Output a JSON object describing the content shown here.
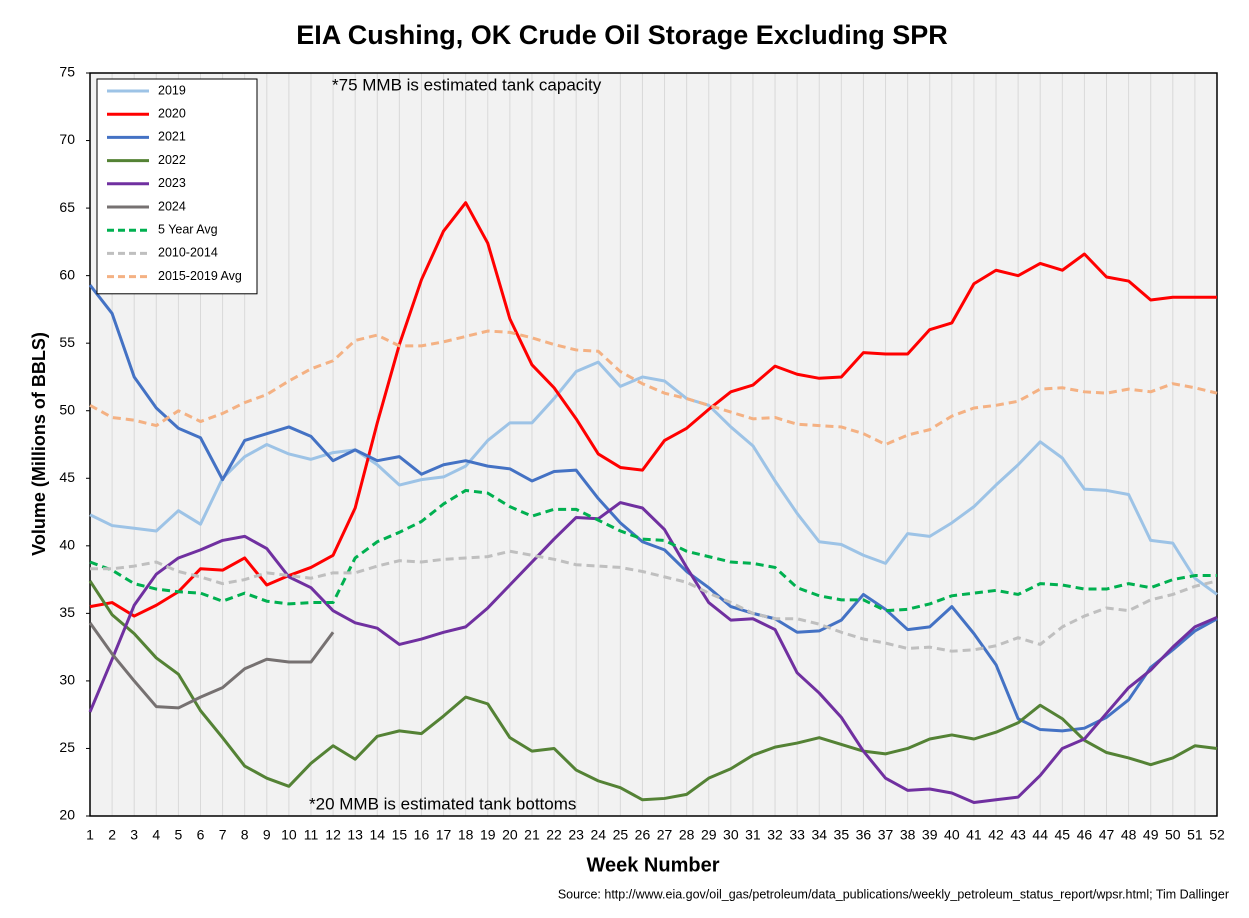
{
  "chart_data": {
    "type": "line",
    "title": "EIA Cushing, OK Crude Oil Storage Excluding SPR",
    "xlabel": "Week Number",
    "ylabel": "Volume (Millions of BBLS)",
    "annotations": [
      "*75 MMB is estimated tank capacity",
      "*20 MMB is estimated tank bottoms"
    ],
    "source": "Source: http://www.eia.gov/oil_gas/petroleum/data_publications/weekly_petroleum_status_report/wpsr.html; Tim Dallinger",
    "legend": "upper left",
    "grid": true,
    "x": [
      1,
      2,
      3,
      4,
      5,
      6,
      7,
      8,
      9,
      10,
      11,
      12,
      13,
      14,
      15,
      16,
      17,
      18,
      19,
      20,
      21,
      22,
      23,
      24,
      25,
      26,
      27,
      28,
      29,
      30,
      31,
      32,
      33,
      34,
      35,
      36,
      37,
      38,
      39,
      40,
      41,
      42,
      43,
      44,
      45,
      46,
      47,
      48,
      49,
      50,
      51,
      52
    ],
    "xlim": [
      1,
      52
    ],
    "xticks": [
      1,
      2,
      3,
      4,
      5,
      6,
      7,
      8,
      9,
      10,
      11,
      12,
      13,
      14,
      15,
      16,
      17,
      18,
      19,
      20,
      21,
      22,
      23,
      24,
      25,
      26,
      27,
      28,
      29,
      30,
      31,
      32,
      33,
      34,
      35,
      36,
      37,
      38,
      39,
      40,
      41,
      42,
      43,
      44,
      45,
      46,
      47,
      48,
      49,
      50,
      51,
      52
    ],
    "ylim": [
      20,
      75
    ],
    "yticks": [
      20,
      25,
      30,
      35,
      40,
      45,
      50,
      55,
      60,
      65,
      70,
      75
    ],
    "series": [
      {
        "name": "2019",
        "color": "#9dc3e6",
        "dashed": false,
        "values": [
          42.3,
          41.5,
          41.3,
          41.1,
          42.6,
          41.6,
          45,
          46.6,
          47.5,
          46.8,
          46.4,
          46.9,
          47.1,
          46,
          44.5,
          44.9,
          45.1,
          45.9,
          47.8,
          49.1,
          49.1,
          50.9,
          52.9,
          53.6,
          51.8,
          52.5,
          52.2,
          50.9,
          50.4,
          48.8,
          47.4,
          44.8,
          42.4,
          40.3,
          40.1,
          39.3,
          38.7,
          40.9,
          40.7,
          41.7,
          42.9,
          44.5,
          46,
          47.7,
          46.5,
          44.2,
          44.1,
          43.8,
          40.4,
          40.2,
          37.6,
          36.4
        ]
      },
      {
        "name": "2020",
        "color": "#ff0000",
        "dashed": false,
        "values": [
          35.5,
          35.8,
          34.8,
          35.6,
          36.6,
          38.3,
          38.2,
          39.1,
          37.1,
          37.8,
          38.4,
          39.3,
          42.8,
          49.1,
          54.9,
          59.7,
          63.3,
          65.4,
          62.4,
          56.8,
          53.4,
          51.7,
          49.4,
          46.8,
          45.8,
          45.6,
          47.8,
          48.7,
          50.1,
          51.4,
          51.9,
          53.3,
          52.7,
          52.4,
          52.5,
          54.3,
          54.2,
          54.2,
          56,
          56.5,
          59.4,
          60.4,
          60,
          60.9,
          60.4,
          61.6,
          59.9,
          59.6,
          58.2,
          58.4,
          58.4,
          58.4
        ]
      },
      {
        "name": "2021",
        "color": "#4472c4",
        "dashed": false,
        "values": [
          59.3,
          57.2,
          52.5,
          50.2,
          48.7,
          48,
          44.9,
          47.8,
          48.3,
          48.8,
          48.1,
          46.3,
          47.1,
          46.3,
          46.6,
          45.3,
          46,
          46.3,
          45.9,
          45.7,
          44.8,
          45.5,
          45.6,
          43.5,
          41.7,
          40.3,
          39.7,
          38.1,
          36.9,
          35.5,
          35,
          34.6,
          33.6,
          33.7,
          34.5,
          36.4,
          35.3,
          33.8,
          34,
          35.5,
          33.5,
          31.2,
          27.2,
          26.4,
          26.3,
          26.5,
          27.3,
          28.6,
          31,
          32.3,
          33.7,
          34.6
        ]
      },
      {
        "name": "2022",
        "color": "#548235",
        "dashed": false,
        "values": [
          37.4,
          34.9,
          33.5,
          31.7,
          30.5,
          27.8,
          25.8,
          23.7,
          22.8,
          22.2,
          23.9,
          25.2,
          24.2,
          25.9,
          26.3,
          26.1,
          27.4,
          28.8,
          28.3,
          25.8,
          24.8,
          25,
          23.4,
          22.6,
          22.1,
          21.2,
          21.3,
          21.6,
          22.8,
          23.5,
          24.5,
          25.1,
          25.4,
          25.8,
          25.3,
          24.8,
          24.6,
          25,
          25.7,
          26,
          25.7,
          26.2,
          26.9,
          28.2,
          27.2,
          25.6,
          24.7,
          24.3,
          23.8,
          24.3,
          25.2,
          25
        ]
      },
      {
        "name": "2023",
        "color": "#7030a0",
        "dashed": false,
        "values": [
          27.7,
          31.6,
          35.6,
          37.9,
          39.1,
          39.7,
          40.4,
          40.7,
          39.8,
          37.7,
          36.9,
          35.2,
          34.3,
          33.9,
          32.7,
          33.1,
          33.6,
          34,
          35.4,
          37.1,
          38.8,
          40.5,
          42.1,
          42,
          43.2,
          42.8,
          41.2,
          38.4,
          35.8,
          34.5,
          34.6,
          33.8,
          30.6,
          29.1,
          27.3,
          24.8,
          22.8,
          21.9,
          22,
          21.7,
          21,
          21.2,
          21.4,
          23,
          25,
          25.7,
          27.6,
          29.5,
          30.8,
          32.5,
          34,
          34.7
        ]
      },
      {
        "name": "2024",
        "color": "#767171",
        "dashed": false,
        "values": [
          34.3,
          32,
          30,
          28.1,
          28,
          28.8,
          29.5,
          30.9,
          31.6,
          31.4,
          31.4,
          33.6,
          null,
          null,
          null,
          null,
          null,
          null,
          null,
          null,
          null,
          null,
          null,
          null,
          null,
          null,
          null,
          null,
          null,
          null,
          null,
          null,
          null,
          null,
          null,
          null,
          null,
          null,
          null,
          null,
          null,
          null,
          null,
          null,
          null,
          null,
          null,
          null,
          null,
          null,
          null,
          null
        ]
      },
      {
        "name": "5 Year Avg",
        "color": "#00b050",
        "dashed": true,
        "values": [
          38.8,
          38.2,
          37.2,
          36.8,
          36.6,
          36.5,
          35.9,
          36.5,
          35.9,
          35.7,
          35.8,
          35.8,
          39.1,
          40.3,
          41,
          41.8,
          43.1,
          44.1,
          43.9,
          42.9,
          42.2,
          42.7,
          42.7,
          41.9,
          41.1,
          40.5,
          40.4,
          39.6,
          39.2,
          38.8,
          38.7,
          38.4,
          36.9,
          36.3,
          36,
          36,
          35.2,
          35.3,
          35.7,
          36.3,
          36.5,
          36.7,
          36.4,
          37.2,
          37.1,
          36.8,
          36.8,
          37.2,
          36.9,
          37.5,
          37.8,
          37.8
        ]
      },
      {
        "name": "2010-2014",
        "color": "#bfbfbf",
        "dashed": true,
        "values": [
          38.3,
          38.3,
          38.5,
          38.8,
          38.1,
          37.7,
          37.2,
          37.5,
          38,
          37.8,
          37.6,
          38,
          38,
          38.5,
          38.9,
          38.8,
          39,
          39.1,
          39.2,
          39.6,
          39.3,
          39,
          38.6,
          38.5,
          38.4,
          38.1,
          37.7,
          37.3,
          36.5,
          35.8,
          35,
          34.6,
          34.6,
          34.2,
          33.6,
          33.1,
          32.8,
          32.4,
          32.5,
          32.2,
          32.3,
          32.6,
          33.2,
          32.7,
          34,
          34.8,
          35.4,
          35.2,
          36,
          36.4,
          37,
          37.4
        ]
      },
      {
        "name": "2015-2019 Avg",
        "color": "#f4b183",
        "dashed": true,
        "values": [
          50.4,
          49.5,
          49.3,
          48.9,
          50,
          49.2,
          49.8,
          50.6,
          51.2,
          52.2,
          53.1,
          53.7,
          55.2,
          55.6,
          54.8,
          54.8,
          55.1,
          55.5,
          55.9,
          55.8,
          55.4,
          54.9,
          54.5,
          54.4,
          52.9,
          52,
          51.3,
          50.9,
          50.4,
          49.9,
          49.4,
          49.5,
          49,
          48.9,
          48.8,
          48.3,
          47.5,
          48.2,
          48.6,
          49.6,
          50.2,
          50.4,
          50.7,
          51.6,
          51.7,
          51.4,
          51.3,
          51.6,
          51.4,
          52,
          51.7,
          51.3
        ]
      }
    ]
  }
}
